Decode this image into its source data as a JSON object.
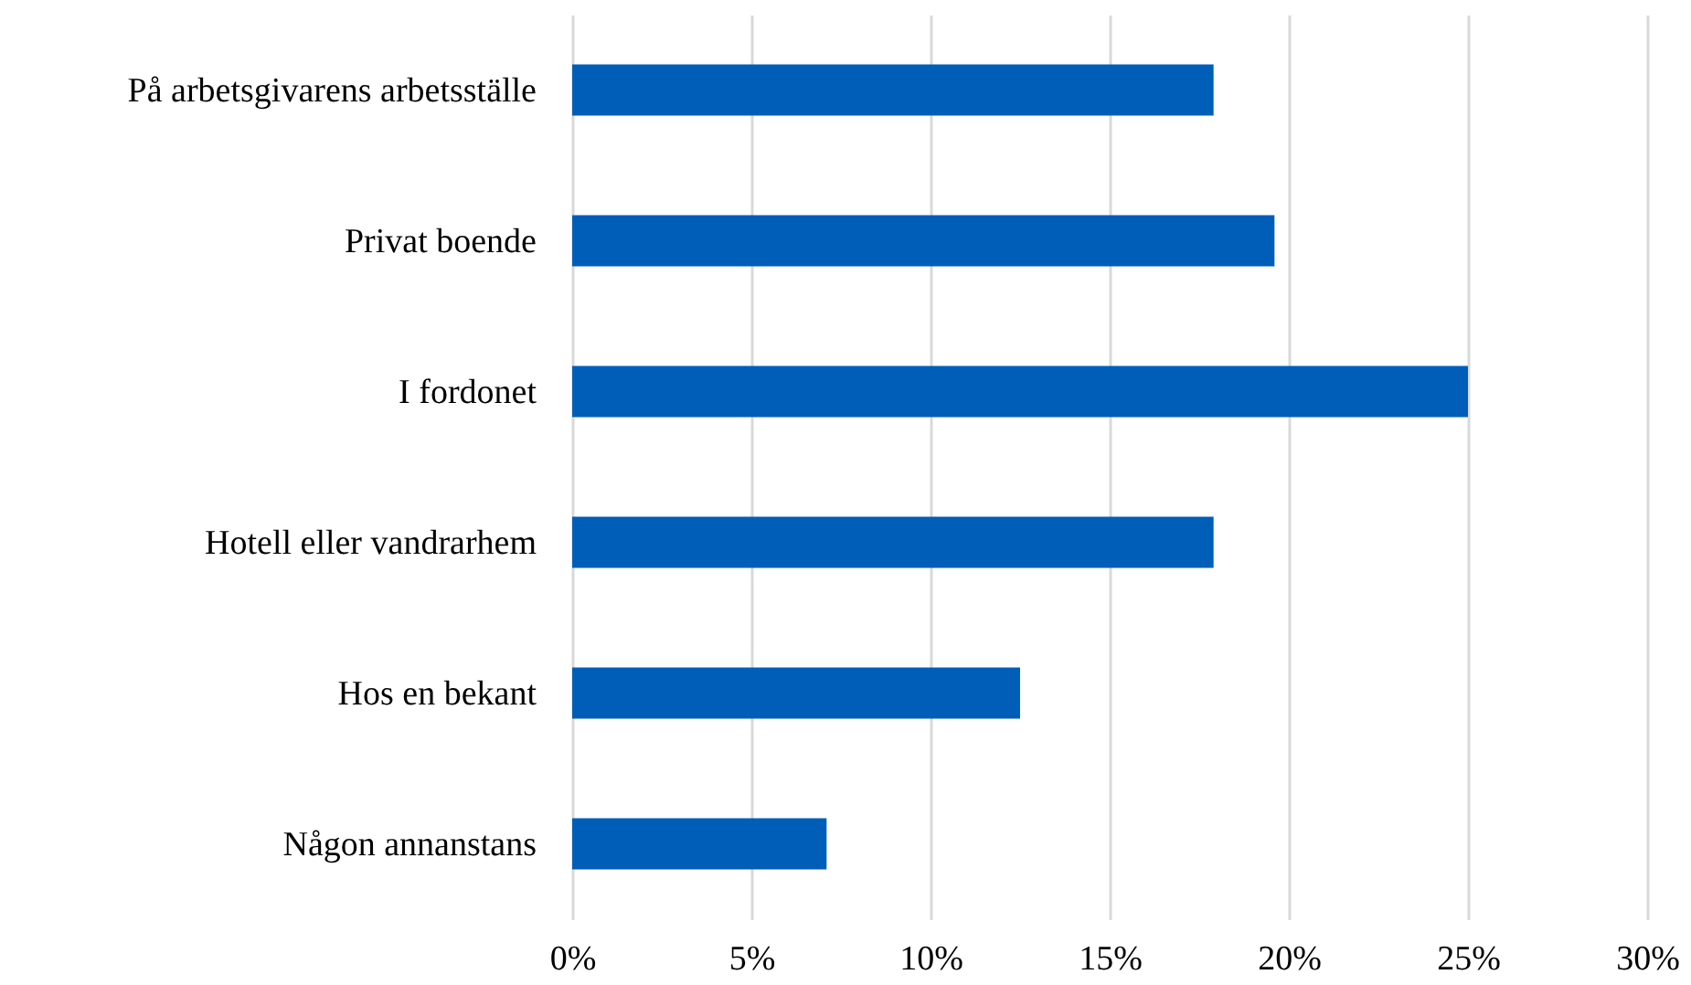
{
  "chart_data": {
    "type": "bar",
    "orientation": "horizontal",
    "categories": [
      "På arbetsgivarens arbetsställe",
      "Privat boende",
      "I fordonet",
      "Hotell eller vandrarhem",
      "Hos en bekant",
      "Någon annanstans"
    ],
    "values": [
      17.9,
      19.6,
      25,
      17.9,
      12.5,
      7.1
    ],
    "color": "#005eb8",
    "xlim": [
      0,
      30
    ],
    "xticks": [
      {
        "value": 0,
        "label": "0%"
      },
      {
        "value": 5,
        "label": "5%"
      },
      {
        "value": 10,
        "label": "10%"
      },
      {
        "value": 15,
        "label": "15%"
      },
      {
        "value": 20,
        "label": "20%"
      },
      {
        "value": 25,
        "label": "25%"
      },
      {
        "value": 30,
        "label": "30%"
      }
    ],
    "grid": "x"
  }
}
